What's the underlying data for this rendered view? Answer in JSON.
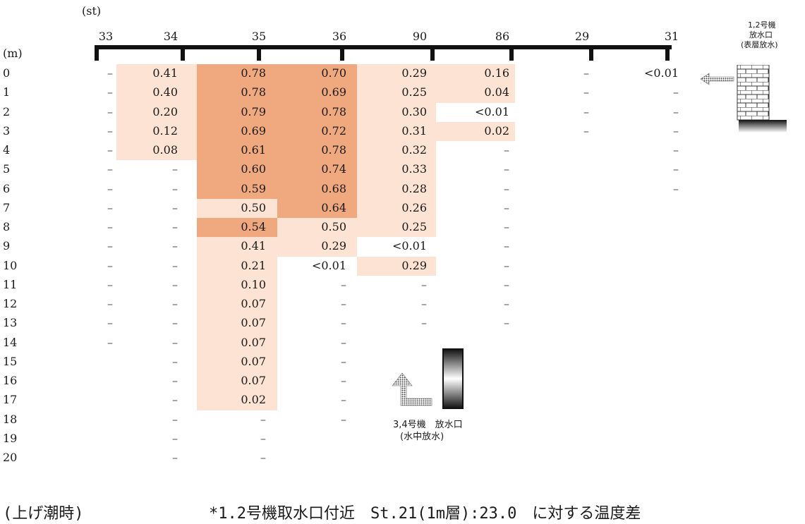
{
  "unit_station": "(st)",
  "unit_depth": "(m)",
  "stations": [
    "33",
    "34",
    "35",
    "36",
    "90",
    "86",
    "29",
    "31"
  ],
  "depths": [
    "0",
    "1",
    "2",
    "3",
    "4",
    "5",
    "6",
    "7",
    "8",
    "9",
    "10",
    "11",
    "12",
    "13",
    "14",
    "15",
    "16",
    "17",
    "18",
    "19",
    "20"
  ],
  "table": [
    [
      "–",
      "0.41",
      "0.78",
      "0.70",
      "0.29",
      "0.16",
      "–",
      "<0.01"
    ],
    [
      "–",
      "0.40",
      "0.78",
      "0.69",
      "0.25",
      "0.04",
      "–",
      "–"
    ],
    [
      "–",
      "0.20",
      "0.79",
      "0.78",
      "0.30",
      "<0.01",
      "–",
      "–"
    ],
    [
      "–",
      "0.12",
      "0.69",
      "0.72",
      "0.31",
      "0.02",
      "–",
      "–"
    ],
    [
      "–",
      "0.08",
      "0.61",
      "0.78",
      "0.32",
      "–",
      "",
      "–"
    ],
    [
      "–",
      "–",
      "0.60",
      "0.74",
      "0.33",
      "–",
      "",
      "–"
    ],
    [
      "–",
      "–",
      "0.59",
      "0.68",
      "0.28",
      "–",
      "",
      "–"
    ],
    [
      "–",
      "–",
      "0.50",
      "0.64",
      "0.26",
      "–",
      "",
      ""
    ],
    [
      "–",
      "–",
      "0.54",
      "0.50",
      "0.25",
      "–",
      "",
      ""
    ],
    [
      "–",
      "–",
      "0.41",
      "0.29",
      "<0.01",
      "–",
      "",
      ""
    ],
    [
      "–",
      "–",
      "0.21",
      "<0.01",
      "0.29",
      "–",
      "",
      ""
    ],
    [
      "–",
      "–",
      "0.10",
      "–",
      "–",
      "–",
      "",
      ""
    ],
    [
      "–",
      "–",
      "0.07",
      "–",
      "–",
      "–",
      "",
      ""
    ],
    [
      "–",
      "–",
      "0.07",
      "–",
      "–",
      "–",
      "",
      ""
    ],
    [
      "–",
      "–",
      "0.07",
      "–",
      "",
      "",
      "",
      ""
    ],
    [
      "",
      "–",
      "0.07",
      "–",
      "",
      "",
      "",
      ""
    ],
    [
      "",
      "–",
      "0.07",
      "–",
      "",
      "",
      "",
      ""
    ],
    [
      "",
      "–",
      "0.02",
      "–",
      "",
      "",
      "",
      ""
    ],
    [
      "",
      "–",
      "–",
      "–",
      "",
      "",
      "",
      ""
    ],
    [
      "",
      "–",
      "–",
      "",
      "",
      "",
      "",
      ""
    ],
    [
      "",
      "–",
      "–",
      "",
      "",
      "",
      "",
      ""
    ]
  ],
  "shading": [
    [
      0,
      1,
      2,
      2,
      1,
      1,
      0,
      0
    ],
    [
      0,
      1,
      2,
      2,
      1,
      1,
      0,
      0
    ],
    [
      0,
      1,
      2,
      2,
      1,
      0,
      0,
      0
    ],
    [
      0,
      1,
      2,
      2,
      1,
      1,
      0,
      0
    ],
    [
      0,
      1,
      2,
      2,
      1,
      0,
      0,
      0
    ],
    [
      0,
      0,
      2,
      2,
      1,
      0,
      0,
      0
    ],
    [
      0,
      0,
      2,
      2,
      1,
      0,
      0,
      0
    ],
    [
      0,
      0,
      1,
      2,
      1,
      0,
      0,
      0
    ],
    [
      0,
      0,
      2,
      1,
      1,
      0,
      0,
      0
    ],
    [
      0,
      0,
      1,
      1,
      0,
      0,
      0,
      0
    ],
    [
      0,
      0,
      1,
      0,
      1,
      0,
      0,
      0
    ],
    [
      0,
      0,
      1,
      0,
      0,
      0,
      0,
      0
    ],
    [
      0,
      0,
      1,
      0,
      0,
      0,
      0,
      0
    ],
    [
      0,
      0,
      1,
      0,
      0,
      0,
      0,
      0
    ],
    [
      0,
      0,
      1,
      0,
      0,
      0,
      0,
      0
    ],
    [
      0,
      0,
      1,
      0,
      0,
      0,
      0,
      0
    ],
    [
      0,
      0,
      1,
      0,
      0,
      0,
      0,
      0
    ],
    [
      0,
      0,
      1,
      0,
      0,
      0,
      0,
      0
    ],
    [
      0,
      0,
      0,
      0,
      0,
      0,
      0,
      0
    ],
    [
      0,
      0,
      0,
      0,
      0,
      0,
      0,
      0
    ],
    [
      0,
      0,
      0,
      0,
      0,
      0,
      0,
      0
    ]
  ],
  "colors": {
    "light": "#fce3d3",
    "dark": "#f0a87f"
  },
  "outlet12_line1": "1,2号機",
  "outlet12_line2": "放水口",
  "outlet12_line3": "(表層放水)",
  "outlet34_line1": "3,4号機　放水口",
  "outlet34_line2": "(水中放水)",
  "footer_left": "(上げ潮時)",
  "footer_right": "*1.2号機取水口付近　St.21(1m層):23.0　に対する温度差"
}
